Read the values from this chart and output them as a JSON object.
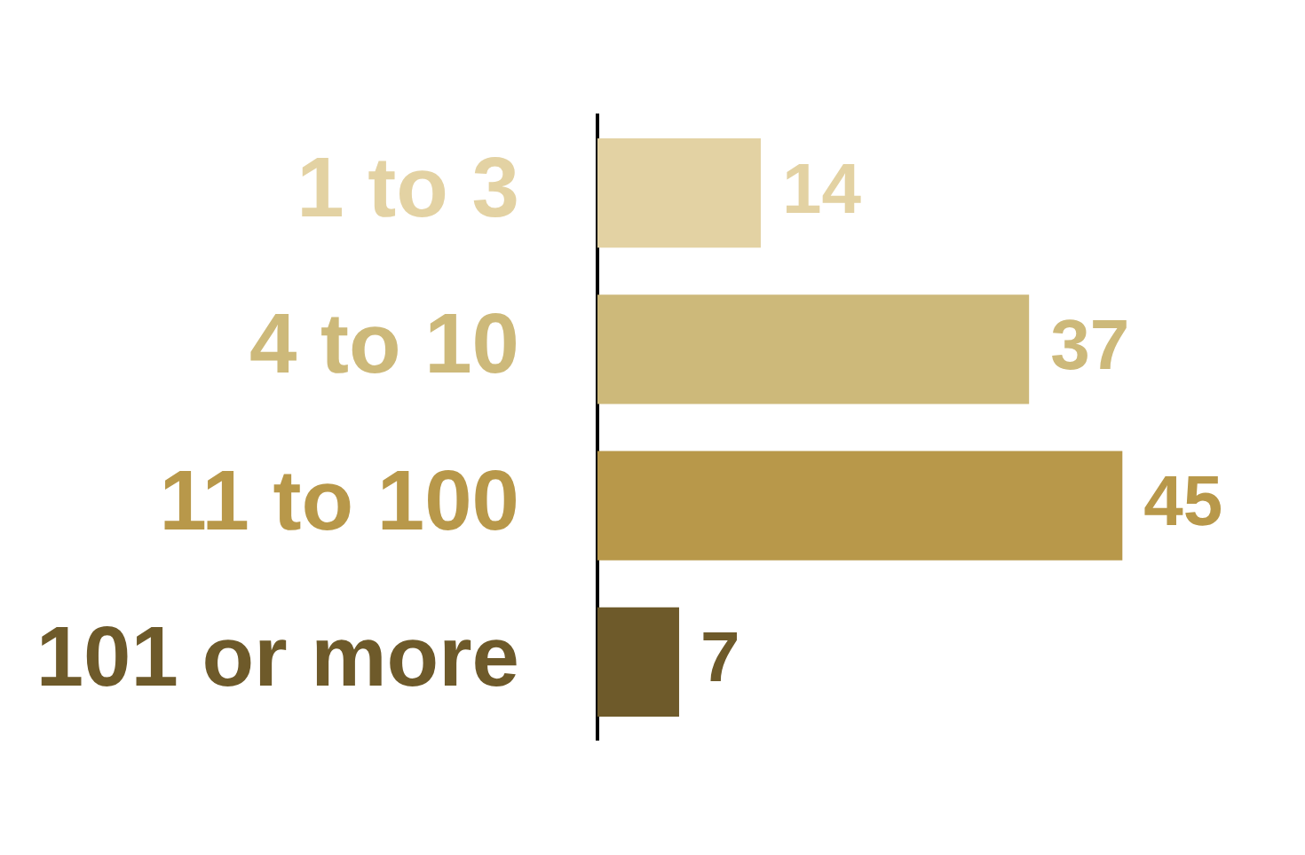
{
  "chart_data": {
    "type": "bar",
    "orientation": "horizontal",
    "categories": [
      "1 to 3",
      "4 to 10",
      "11 to 100",
      "101 or more"
    ],
    "values": [
      14,
      37,
      45,
      7
    ],
    "colors": [
      "#e3d2a3",
      "#cdb97a",
      "#b8984a",
      "#6e5a2a"
    ],
    "data_labels": true,
    "legend": false
  }
}
